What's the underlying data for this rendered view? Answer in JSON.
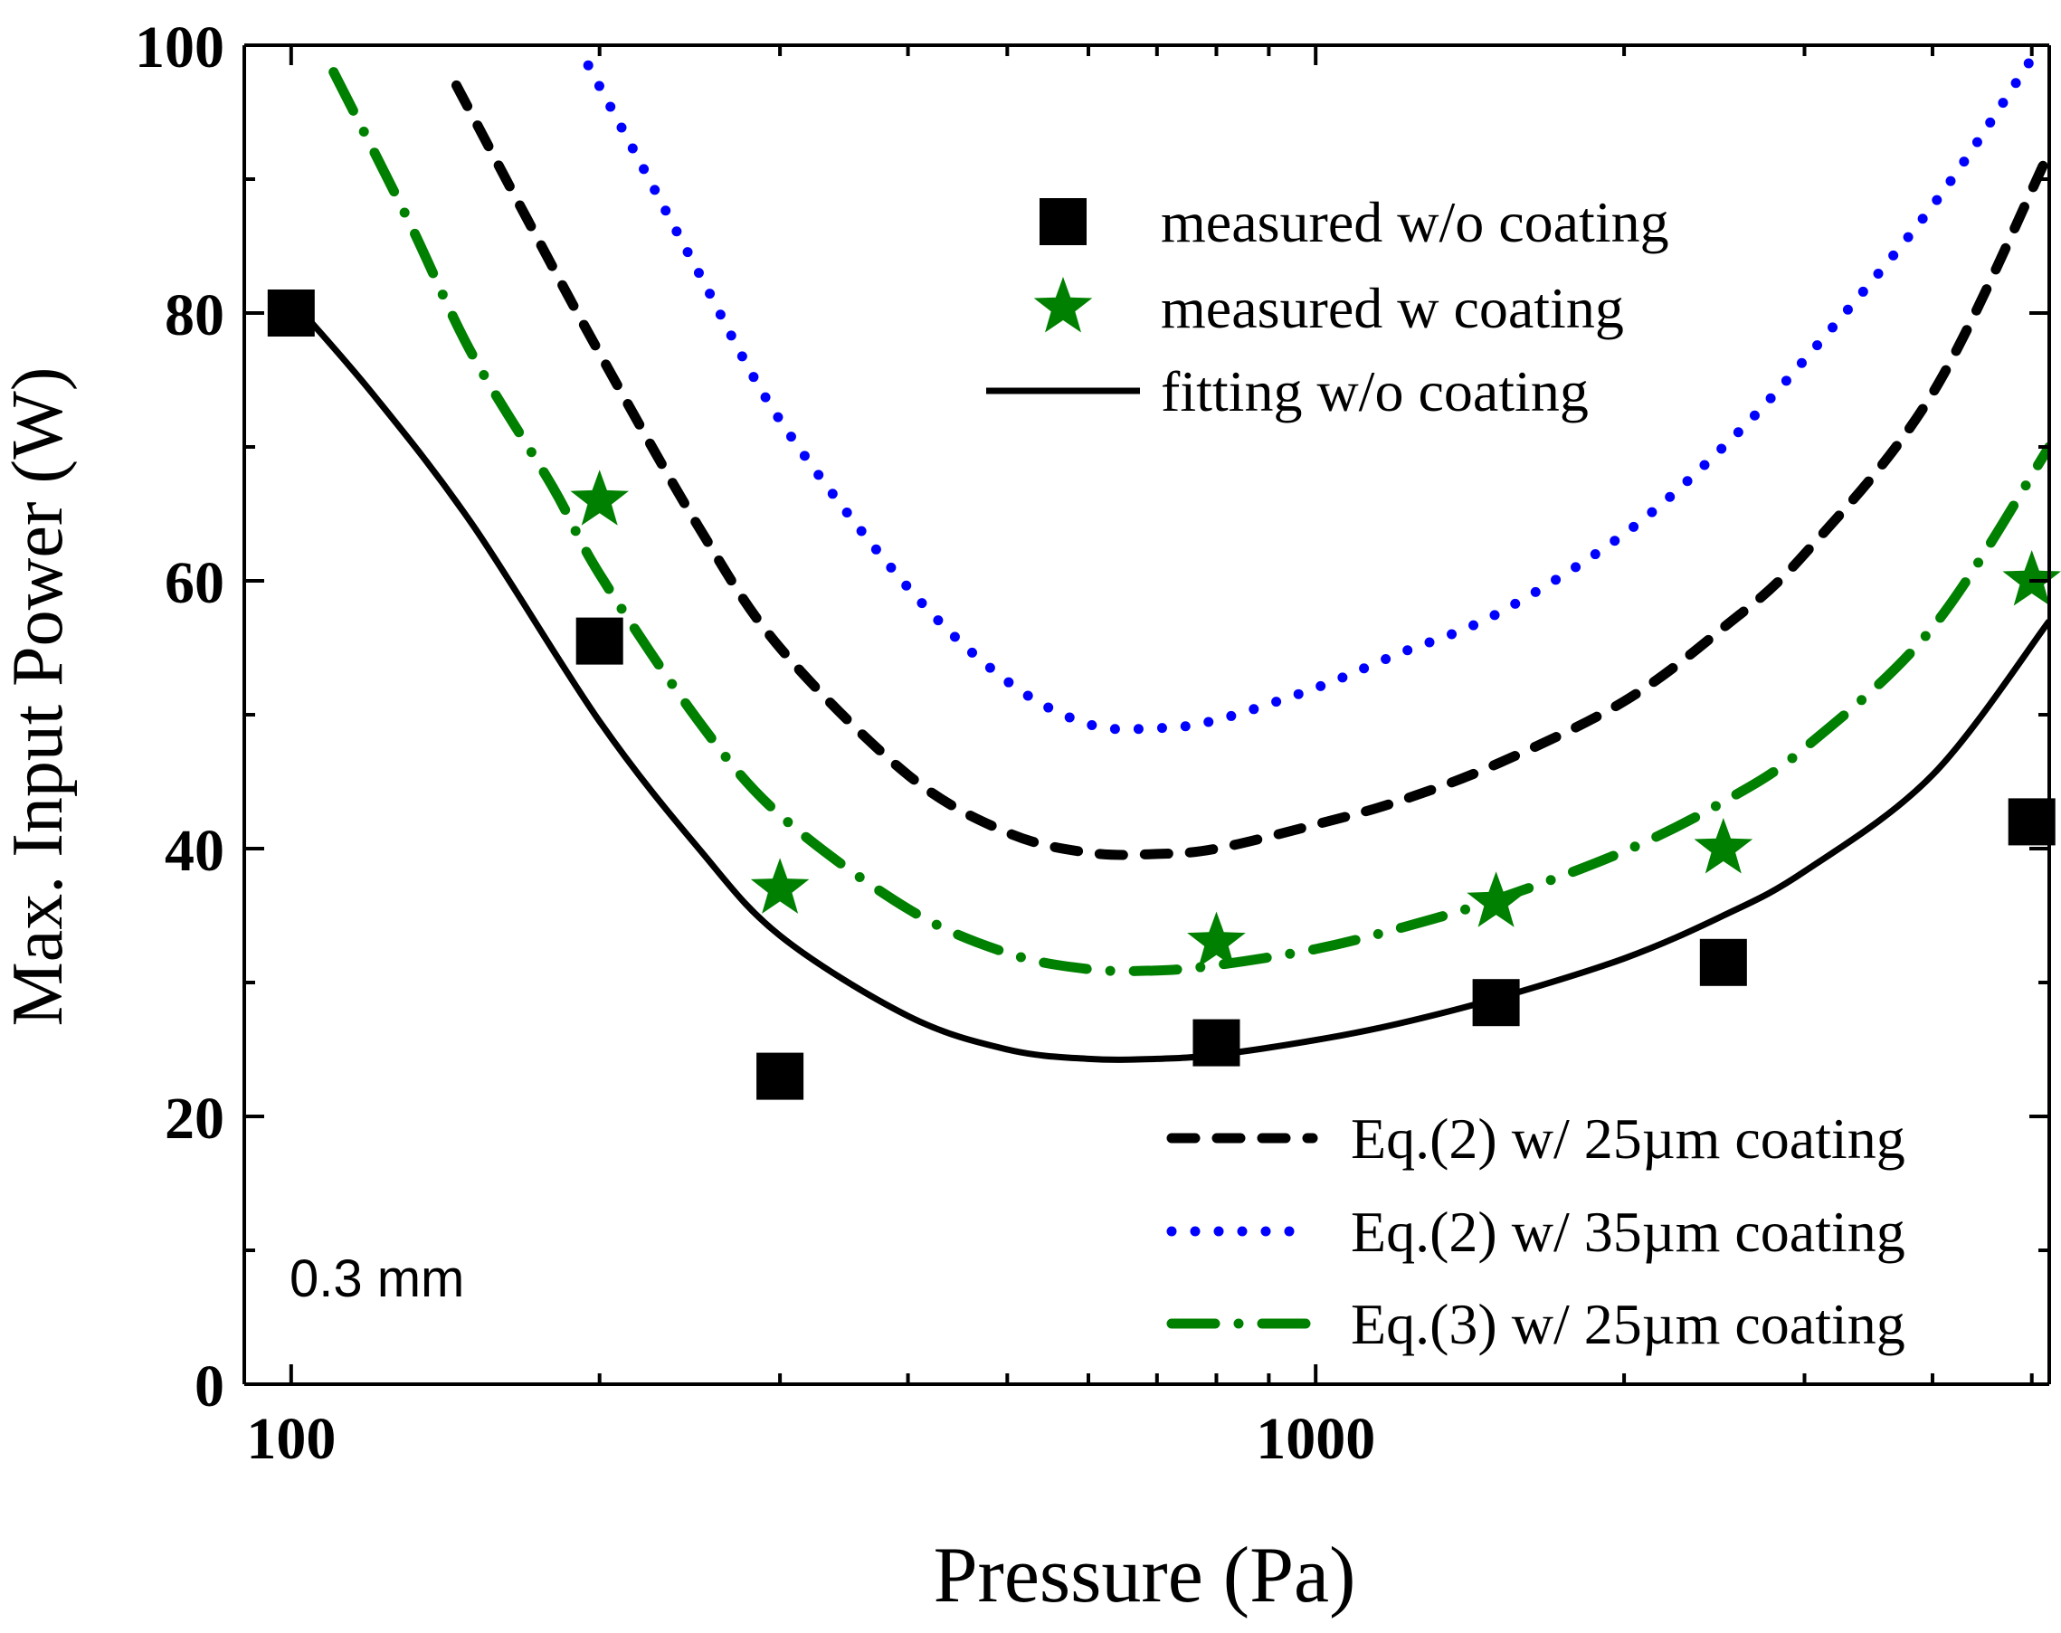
{
  "chart_data": {
    "type": "scatter",
    "xlabel": "Pressure (Pa)",
    "ylabel": "Max. Input Power (W)",
    "xscale": "log",
    "xlim": [
      90,
      5200
    ],
    "ylim": [
      0,
      100
    ],
    "xticks": [
      100,
      1000
    ],
    "xtick_labels": [
      "100",
      "1000"
    ],
    "yticks": [
      0,
      20,
      40,
      60,
      80,
      100
    ],
    "ytick_labels": [
      "0",
      "20",
      "40",
      "60",
      "80",
      "100"
    ],
    "annotation": "0.3 mm",
    "grid": false,
    "series": [
      {
        "name": "measured w/o coating",
        "style": "square-markers",
        "color": "#000000",
        "x": [
          100,
          200,
          300,
          800,
          1500,
          2500,
          5000
        ],
        "y": [
          80,
          55.5,
          23,
          25.5,
          28.5,
          31.5,
          42
        ]
      },
      {
        "name": "measured w coating",
        "style": "star-markers",
        "color": "#008000",
        "x": [
          200,
          300,
          800,
          1500,
          2500,
          5000
        ],
        "y": [
          66,
          37,
          33,
          36,
          40,
          60
        ]
      },
      {
        "name": "fitting w/o coating",
        "style": "solid",
        "color": "#000000",
        "x": [
          100,
          120,
          150,
          200,
          250,
          300,
          400,
          500,
          600,
          700,
          800,
          1000,
          1200,
          1500,
          2000,
          2500,
          3000,
          4000,
          5200
        ],
        "y": [
          81,
          74,
          64.3,
          49.5,
          40,
          33.5,
          27.5,
          25,
          24.3,
          24.3,
          24.6,
          25.7,
          26.9,
          28.8,
          31.8,
          35,
          38.3,
          45.5,
          57
        ]
      },
      {
        "name": "Eq.(2) w/ 25µm coating",
        "style": "dashed",
        "color": "#000000",
        "x": [
          145,
          170,
          200,
          250,
          300,
          400,
          500,
          600,
          700,
          800,
          1000,
          1200,
          1500,
          2000,
          2500,
          3000,
          4000,
          5200
        ],
        "y": [
          97,
          87,
          77,
          64,
          55,
          45.5,
          41.2,
          39.7,
          39.6,
          40,
          41.8,
          43.5,
          46.3,
          51,
          56.5,
          62,
          74,
          92
        ]
      },
      {
        "name": "Eq.(2) w/ 35µm coating",
        "style": "dotted",
        "color": "#0000ff",
        "x": [
          195,
          220,
          250,
          300,
          400,
          500,
          600,
          700,
          800,
          1000,
          1200,
          1500,
          2000,
          2500,
          3000,
          4000,
          5000
        ],
        "y": [
          98.5,
          91,
          83,
          72,
          59.5,
          52.5,
          49.3,
          49,
          49.6,
          52,
          54.5,
          57.5,
          63.5,
          70,
          76.5,
          88,
          99
        ]
      },
      {
        "name": "Eq.(3) w/ 25µm coating",
        "style": "dash-dot",
        "color": "#008000",
        "x": [
          110,
          130,
          150,
          180,
          200,
          250,
          300,
          400,
          500,
          600,
          700,
          800,
          1000,
          1200,
          1500,
          2000,
          2500,
          3000,
          4000,
          5200
        ],
        "y": [
          98,
          87,
          77,
          67,
          60.5,
          49.5,
          42.5,
          35.5,
          32.2,
          31,
          30.9,
          31.3,
          32.5,
          34,
          36.2,
          39.8,
          43.5,
          47.5,
          56.5,
          70
        ]
      }
    ],
    "legends": [
      {
        "placement": "upper-center",
        "entries": [
          "measured w/o coating",
          "measured w coating",
          "fitting w/o coating"
        ]
      },
      {
        "placement": "lower-right",
        "entries": [
          "Eq.(2) w/ 25µm coating",
          "Eq.(2) w/ 35µm coating",
          "Eq.(3) w/ 25µm coating"
        ]
      }
    ]
  }
}
